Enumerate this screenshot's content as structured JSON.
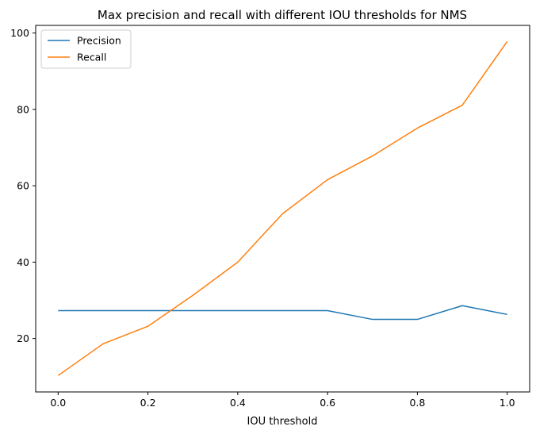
{
  "chart_data": {
    "type": "line",
    "title": "Max precision and recall with different IOU thresholds for NMS",
    "xlabel": "IOU threshold",
    "ylabel": "",
    "x": [
      0.0,
      0.1,
      0.2,
      0.3,
      0.4,
      0.5,
      0.6,
      0.7,
      0.8,
      0.9,
      1.0
    ],
    "xlim": [
      -0.05,
      1.05
    ],
    "ylim": [
      6.0,
      102.0
    ],
    "xticks": [
      0.0,
      0.2,
      0.4,
      0.6,
      0.8,
      1.0
    ],
    "xtick_labels": [
      "0.0",
      "0.2",
      "0.4",
      "0.6",
      "0.8",
      "1.0"
    ],
    "yticks": [
      20,
      40,
      60,
      80,
      100
    ],
    "ytick_labels": [
      "20",
      "40",
      "60",
      "80",
      "100"
    ],
    "grid": false,
    "legend_position": "top-left",
    "series": [
      {
        "name": "Precision",
        "color": "#1f77b4",
        "values": [
          27.3,
          27.3,
          27.3,
          27.3,
          27.3,
          27.3,
          27.3,
          25.0,
          25.0,
          28.6,
          26.3
        ]
      },
      {
        "name": "Recall",
        "color": "#ff7f0e",
        "values": [
          10.3,
          18.6,
          23.2,
          31.3,
          40.0,
          52.7,
          61.6,
          67.8,
          75.1,
          81.1,
          97.8
        ]
      }
    ]
  }
}
